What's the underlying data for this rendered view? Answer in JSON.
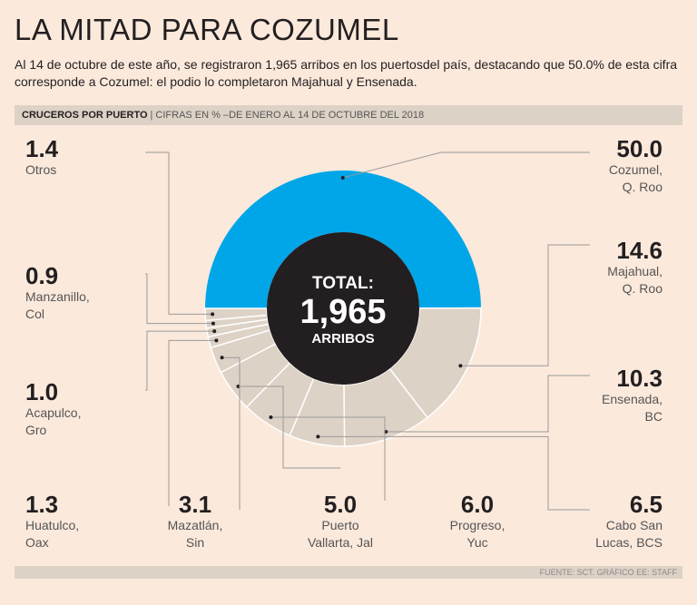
{
  "title": "LA MITAD PARA COZUMEL",
  "subtitle": "Al 14 de octubre de este año, se registraron 1,965 arribos en los puertosdel país, destacando que 50.0% de esta cifra corresponde a Cozumel: el podio lo completaron Majahual y Ensenada.",
  "header": {
    "strong": "CRUCEROS POR PUERTO",
    "separator": "|",
    "light": "CIFRAS EN % –DE ENERO AL 14 DE OCTUBRE DEL 2018"
  },
  "center": {
    "line1": "TOTAL:",
    "line2": "1,965",
    "line3": "ARRIBOS"
  },
  "footer": "FUENTE: SCT. GRÁFICO EE: STAFF",
  "colors": {
    "background": "#fbe9dc",
    "highlight": "#00a6e8",
    "slice": "#ddd2c6",
    "center": "#231f20",
    "leader": "#9a9a9a"
  },
  "chart_data": {
    "type": "pie",
    "title": "CRUCEROS POR PUERTO",
    "unit": "%",
    "total": 1965,
    "slices": [
      {
        "name": "Cozumel, Q. Roo",
        "value_label": "50.0",
        "value": 50.0,
        "lines": [
          "Cozumel,",
          "Q. Roo"
        ],
        "highlight": true
      },
      {
        "name": "Majahual, Q. Roo",
        "value_label": "14.6",
        "value": 14.6,
        "lines": [
          "Majahual,",
          "Q. Roo"
        ]
      },
      {
        "name": "Ensenada, BC",
        "value_label": "10.3",
        "value": 10.3,
        "lines": [
          "Ensenada,",
          "BC"
        ]
      },
      {
        "name": "Cabo San Lucas, BCS",
        "value_label": "6.5",
        "value": 6.5,
        "lines": [
          "Cabo San",
          "Lucas, BCS"
        ]
      },
      {
        "name": "Progreso, Yuc",
        "value_label": "6.0",
        "value": 6.0,
        "lines": [
          "Progreso,",
          "Yuc"
        ]
      },
      {
        "name": "Puerto Vallarta, Jal",
        "value_label": "5.0",
        "value": 5.0,
        "lines": [
          "Puerto",
          "Vallarta, Jal"
        ]
      },
      {
        "name": "Mazatlán, Sin",
        "value_label": "3.1",
        "value": 3.1,
        "lines": [
          "Mazatlán,",
          "Sin"
        ]
      },
      {
        "name": "Huatulco, Oax",
        "value_label": "1.3",
        "value": 1.3,
        "lines": [
          "Huatulco,",
          "Oax"
        ]
      },
      {
        "name": "Acapulco, Gro",
        "value_label": "1.0",
        "value": 1.0,
        "lines": [
          "Acapulco,",
          "Gro"
        ]
      },
      {
        "name": "Manzanillo, Col",
        "value_label": "0.9",
        "value": 0.9,
        "lines": [
          "Manzanillo,",
          "Col"
        ]
      },
      {
        "name": "Otros",
        "value_label": "1.4",
        "value": 1.4,
        "lines": [
          "Otros"
        ]
      }
    ]
  }
}
